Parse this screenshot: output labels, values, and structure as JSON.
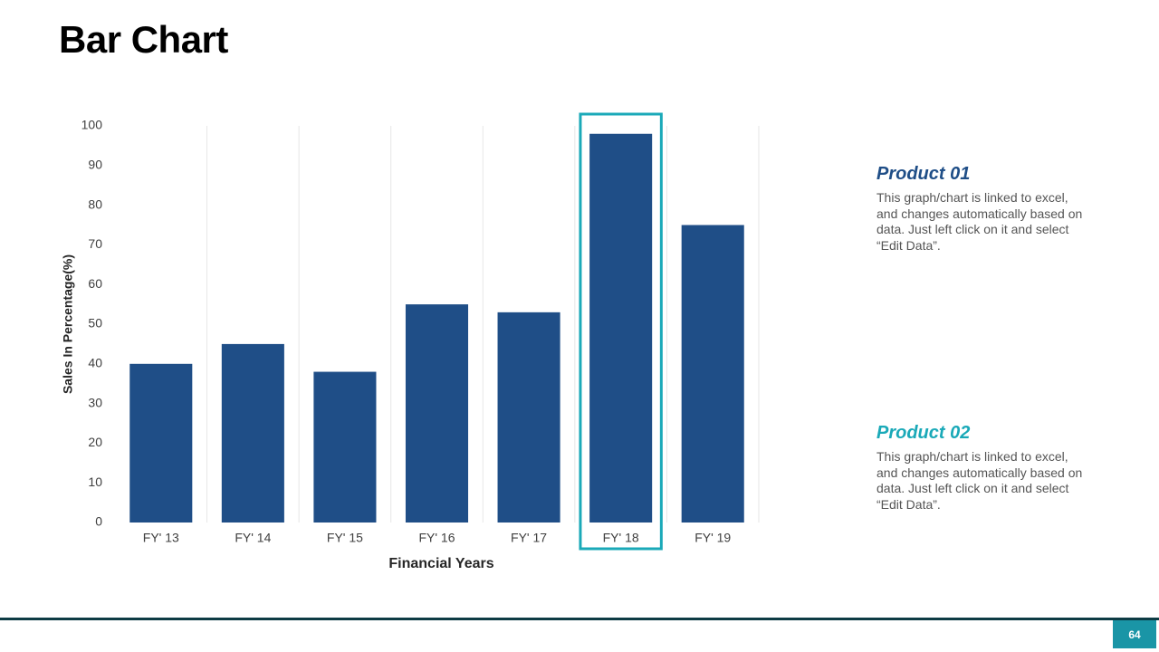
{
  "chart_data": {
    "type": "bar",
    "title": "Bar Chart",
    "categories": [
      "FY' 13",
      "FY' 14",
      "FY' 15",
      "FY' 16",
      "FY' 17",
      "FY' 18",
      "FY' 19"
    ],
    "values": [
      40,
      45,
      38,
      55,
      53,
      98,
      75
    ],
    "color": "#1f4e87",
    "ylim": [
      0,
      100
    ],
    "yticks": [
      0,
      10,
      20,
      30,
      40,
      50,
      60,
      70,
      80,
      90,
      100
    ],
    "xlabel": "Financial Years",
    "ylabel": "Sales In Percentage(%)",
    "highlight": 5,
    "highlight_color": "#1aa9b8"
  },
  "products": [
    {
      "title": "Product 01",
      "text": "This graph/chart is linked to excel, and changes automatically based on data. Just left click on it and select “Edit Data”."
    },
    {
      "title": "Product 02",
      "text": "This graph/chart is linked to excel, and changes automatically based on data. Just left click on it and select “Edit Data”."
    }
  ],
  "page_number": "64"
}
